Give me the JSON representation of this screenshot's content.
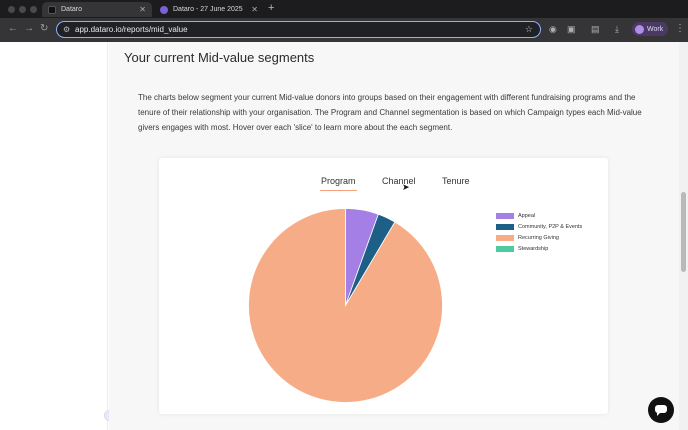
{
  "browser": {
    "tabs": [
      {
        "label": "Dataro",
        "active": true
      },
      {
        "label": "Dataro - 27 June 2025",
        "active": false
      }
    ],
    "url": "app.dataro.io/reports/mid_value",
    "profile_label": "Work"
  },
  "page": {
    "section_title": "Your current Mid-value segments",
    "intro": "The charts below segment your current Mid-value donors into groups based on their engagement with different fundraising programs and the tenure of their relationship with your organisation. The Program and Channel segmentation is based on which Campaign types each Mid-value givers engages with most. Hover over each 'slice' to learn more about the each segment.",
    "segment_tabs": [
      {
        "label": "Program",
        "active": true
      },
      {
        "label": "Channel",
        "active": false
      },
      {
        "label": "Tenure",
        "active": false
      }
    ]
  },
  "chart_data": {
    "type": "pie",
    "categories": [
      "Appeal",
      "Community, P2P & Events",
      "Recurring Giving",
      "Stewardship"
    ],
    "values": [
      5.5,
      3,
      91.5,
      0
    ],
    "colors": [
      "#a37fe6",
      "#1d5f86",
      "#f6ad87",
      "#4fc9a0"
    ],
    "legend_placement": "top-right"
  }
}
